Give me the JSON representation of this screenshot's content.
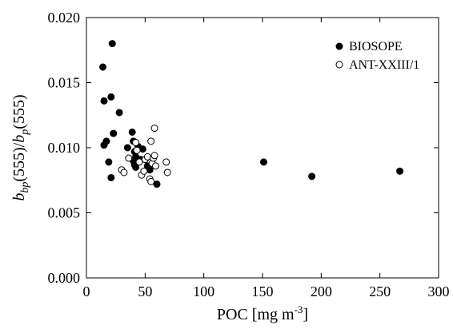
{
  "chart_data": {
    "type": "scatter",
    "title": "",
    "xlabel": "POC  [mg m",
    "xlabel_sup": "-3",
    "xlabel_end": "]",
    "ylabel_parts": [
      {
        "t": "b",
        "style": "italic",
        "shift": "base"
      },
      {
        "t": "bp",
        "style": "italic",
        "shift": "sub"
      },
      {
        "t": "(555)/",
        "style": "normal",
        "shift": "base"
      },
      {
        "t": "b",
        "style": "italic",
        "shift": "base"
      },
      {
        "t": "p",
        "style": "italic",
        "shift": "sub"
      },
      {
        "t": "(555)",
        "style": "normal",
        "shift": "base"
      }
    ],
    "xlim": [
      0,
      300
    ],
    "ylim": [
      0.0,
      0.02
    ],
    "xticks": [
      0,
      50,
      100,
      150,
      200,
      250,
      300
    ],
    "xtick_labels": [
      "0",
      "50",
      "100",
      "150",
      "200",
      "250",
      "300"
    ],
    "yticks": [
      0.0,
      0.005,
      0.01,
      0.015,
      0.02
    ],
    "ytick_labels": [
      "0.000",
      "0.005",
      "0.010",
      "0.015",
      "0.020"
    ],
    "grid": false,
    "legend_position": "top-right",
    "series": [
      {
        "name": "BIOSOPE",
        "marker": "filled-circle",
        "color": "#000000",
        "points": [
          [
            14,
            0.0162
          ],
          [
            22,
            0.018
          ],
          [
            15,
            0.0136
          ],
          [
            21,
            0.0139
          ],
          [
            28,
            0.0127
          ],
          [
            17,
            0.0105
          ],
          [
            15,
            0.0102
          ],
          [
            23,
            0.0111
          ],
          [
            19,
            0.0089
          ],
          [
            21,
            0.0077
          ],
          [
            35,
            0.01
          ],
          [
            39,
            0.0112
          ],
          [
            40,
            0.0105
          ],
          [
            41,
            0.0097
          ],
          [
            44,
            0.0101
          ],
          [
            48,
            0.0099
          ],
          [
            42,
            0.0093
          ],
          [
            40,
            0.009
          ],
          [
            41,
            0.0087
          ],
          [
            42,
            0.0085
          ],
          [
            46,
            0.0091
          ],
          [
            52,
            0.0086
          ],
          [
            54,
            0.0083
          ],
          [
            60,
            0.0072
          ],
          [
            151,
            0.0089
          ],
          [
            192,
            0.0078
          ],
          [
            267,
            0.0082
          ]
        ]
      },
      {
        "name": "ANT-XXIII/1",
        "marker": "open-circle",
        "color": "#000000",
        "points": [
          [
            30,
            0.0083
          ],
          [
            32,
            0.0081
          ],
          [
            36,
            0.0092
          ],
          [
            42,
            0.0104
          ],
          [
            43,
            0.0098
          ],
          [
            45,
            0.0089
          ],
          [
            47,
            0.0079
          ],
          [
            49,
            0.0082
          ],
          [
            50,
            0.0091
          ],
          [
            52,
            0.0093
          ],
          [
            54,
            0.0076
          ],
          [
            55,
            0.0105
          ],
          [
            56,
            0.0088
          ],
          [
            57,
            0.0092
          ],
          [
            58,
            0.0115
          ],
          [
            58,
            0.0094
          ],
          [
            59,
            0.0086
          ],
          [
            68,
            0.0089
          ],
          [
            69,
            0.0081
          ],
          [
            55,
            0.0074
          ]
        ]
      }
    ]
  }
}
